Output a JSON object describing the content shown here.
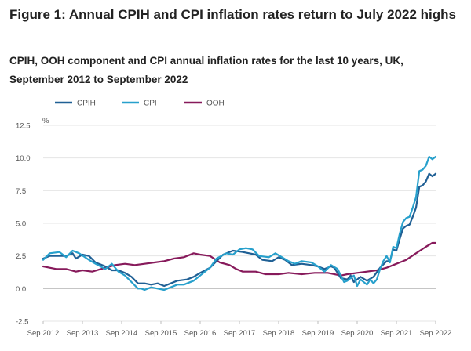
{
  "page": {
    "title": "Figure 1: Annual CPIH and CPI inflation rates return to July 2022 highs",
    "subtitle": "CPIH, OOH component and CPI annual inflation rates for the last 10 years, UK, September 2012 to September 2022"
  },
  "chart_data": {
    "type": "line",
    "title": "Figure 1: Annual CPIH and CPI inflation rates return to July 2022 highs",
    "subtitle": "CPIH, OOH component and CPI annual inflation rates for the last 10 years, UK, September 2012 to September 2022",
    "ylabel": "%",
    "xlabel": "",
    "ylim": [
      -2.5,
      12.5
    ],
    "yticks": [
      -2.5,
      0.0,
      2.5,
      5.0,
      7.5,
      10.0,
      12.5
    ],
    "ytick_labels": [
      "-2.5",
      "0.0",
      "2.5",
      "5.0",
      "7.5",
      "10.0",
      "12.5"
    ],
    "xlim": [
      2012.667,
      2022.667
    ],
    "xtick_labels": [
      "Sep 2012",
      "Sep 2013",
      "Sep 2014",
      "Sep 2015",
      "Sep 2016",
      "Sep 2017",
      "Sep 2018",
      "Sep 2019",
      "Sep 2020",
      "Sep 2021",
      "Sep 2022"
    ],
    "grid": true,
    "legend_position": "top-left",
    "series": [
      {
        "name": "CPIH",
        "color": "#206095",
        "points": [
          [
            2012.667,
            2.3
          ],
          [
            2012.833,
            2.5
          ],
          [
            2013.083,
            2.5
          ],
          [
            2013.25,
            2.5
          ],
          [
            2013.417,
            2.7
          ],
          [
            2013.5,
            2.3
          ],
          [
            2013.667,
            2.6
          ],
          [
            2013.833,
            2.5
          ],
          [
            2014.0,
            2.0
          ],
          [
            2014.25,
            1.7
          ],
          [
            2014.417,
            1.4
          ],
          [
            2014.583,
            1.4
          ],
          [
            2014.75,
            1.2
          ],
          [
            2014.917,
            0.9
          ],
          [
            2015.083,
            0.4
          ],
          [
            2015.25,
            0.4
          ],
          [
            2015.417,
            0.3
          ],
          [
            2015.583,
            0.4
          ],
          [
            2015.75,
            0.2
          ],
          [
            2015.917,
            0.4
          ],
          [
            2016.083,
            0.6
          ],
          [
            2016.333,
            0.7
          ],
          [
            2016.5,
            0.9
          ],
          [
            2016.667,
            1.2
          ],
          [
            2016.917,
            1.6
          ],
          [
            2017.083,
            2.1
          ],
          [
            2017.25,
            2.6
          ],
          [
            2017.5,
            2.9
          ],
          [
            2017.75,
            2.8
          ],
          [
            2017.917,
            2.7
          ],
          [
            2018.083,
            2.6
          ],
          [
            2018.25,
            2.2
          ],
          [
            2018.5,
            2.1
          ],
          [
            2018.667,
            2.4
          ],
          [
            2018.833,
            2.2
          ],
          [
            2019.0,
            1.8
          ],
          [
            2019.25,
            1.9
          ],
          [
            2019.5,
            1.8
          ],
          [
            2019.667,
            1.7
          ],
          [
            2019.833,
            1.5
          ],
          [
            2020.0,
            1.7
          ],
          [
            2020.083,
            1.6
          ],
          [
            2020.25,
            0.8
          ],
          [
            2020.417,
            0.7
          ],
          [
            2020.5,
            1.0
          ],
          [
            2020.583,
            0.5
          ],
          [
            2020.75,
            0.9
          ],
          [
            2020.917,
            0.6
          ],
          [
            2021.083,
            0.9
          ],
          [
            2021.25,
            1.6
          ],
          [
            2021.417,
            2.1
          ],
          [
            2021.5,
            2.1
          ],
          [
            2021.583,
            3.0
          ],
          [
            2021.667,
            2.9
          ],
          [
            2021.75,
            3.8
          ],
          [
            2021.833,
            4.6
          ],
          [
            2021.917,
            4.8
          ],
          [
            2022.0,
            4.9
          ],
          [
            2022.083,
            5.5
          ],
          [
            2022.167,
            6.2
          ],
          [
            2022.25,
            7.8
          ],
          [
            2022.333,
            7.9
          ],
          [
            2022.417,
            8.2
          ],
          [
            2022.5,
            8.8
          ],
          [
            2022.583,
            8.6
          ],
          [
            2022.667,
            8.8
          ]
        ]
      },
      {
        "name": "CPI",
        "color": "#27a0cc",
        "points": [
          [
            2012.667,
            2.2
          ],
          [
            2012.833,
            2.7
          ],
          [
            2013.083,
            2.8
          ],
          [
            2013.25,
            2.4
          ],
          [
            2013.417,
            2.9
          ],
          [
            2013.583,
            2.7
          ],
          [
            2013.833,
            2.2
          ],
          [
            2014.0,
            1.9
          ],
          [
            2014.25,
            1.5
          ],
          [
            2014.417,
            1.9
          ],
          [
            2014.583,
            1.3
          ],
          [
            2014.75,
            1.0
          ],
          [
            2014.917,
            0.5
          ],
          [
            2015.083,
            0.0
          ],
          [
            2015.167,
            0.0
          ],
          [
            2015.25,
            -0.1
          ],
          [
            2015.417,
            0.1
          ],
          [
            2015.583,
            0.0
          ],
          [
            2015.75,
            -0.1
          ],
          [
            2015.917,
            0.1
          ],
          [
            2016.083,
            0.3
          ],
          [
            2016.25,
            0.3
          ],
          [
            2016.5,
            0.6
          ],
          [
            2016.667,
            1.0
          ],
          [
            2016.917,
            1.6
          ],
          [
            2017.083,
            2.3
          ],
          [
            2017.333,
            2.7
          ],
          [
            2017.5,
            2.6
          ],
          [
            2017.667,
            3.0
          ],
          [
            2017.833,
            3.1
          ],
          [
            2018.0,
            3.0
          ],
          [
            2018.167,
            2.5
          ],
          [
            2018.417,
            2.4
          ],
          [
            2018.583,
            2.7
          ],
          [
            2018.75,
            2.4
          ],
          [
            2018.917,
            2.1
          ],
          [
            2019.083,
            1.9
          ],
          [
            2019.25,
            2.1
          ],
          [
            2019.5,
            2.0
          ],
          [
            2019.667,
            1.7
          ],
          [
            2019.833,
            1.3
          ],
          [
            2020.0,
            1.8
          ],
          [
            2020.167,
            1.5
          ],
          [
            2020.333,
            0.5
          ],
          [
            2020.417,
            0.6
          ],
          [
            2020.583,
            1.0
          ],
          [
            2020.667,
            0.2
          ],
          [
            2020.75,
            0.7
          ],
          [
            2020.917,
            0.3
          ],
          [
            2021.0,
            0.7
          ],
          [
            2021.083,
            0.4
          ],
          [
            2021.167,
            0.7
          ],
          [
            2021.25,
            1.5
          ],
          [
            2021.333,
            2.1
          ],
          [
            2021.417,
            2.5
          ],
          [
            2021.5,
            2.0
          ],
          [
            2021.583,
            3.2
          ],
          [
            2021.667,
            3.1
          ],
          [
            2021.75,
            4.2
          ],
          [
            2021.833,
            5.1
          ],
          [
            2021.917,
            5.4
          ],
          [
            2022.0,
            5.5
          ],
          [
            2022.083,
            6.2
          ],
          [
            2022.167,
            7.0
          ],
          [
            2022.25,
            9.0
          ],
          [
            2022.333,
            9.1
          ],
          [
            2022.417,
            9.4
          ],
          [
            2022.5,
            10.1
          ],
          [
            2022.583,
            9.9
          ],
          [
            2022.667,
            10.1
          ]
        ]
      },
      {
        "name": "OOH",
        "color": "#871a5b",
        "points": [
          [
            2012.667,
            1.7
          ],
          [
            2012.833,
            1.6
          ],
          [
            2013.0,
            1.5
          ],
          [
            2013.25,
            1.5
          ],
          [
            2013.5,
            1.3
          ],
          [
            2013.667,
            1.4
          ],
          [
            2013.917,
            1.3
          ],
          [
            2014.25,
            1.6
          ],
          [
            2014.5,
            1.8
          ],
          [
            2014.75,
            1.9
          ],
          [
            2015.0,
            1.8
          ],
          [
            2015.25,
            1.9
          ],
          [
            2015.5,
            2.0
          ],
          [
            2015.75,
            2.1
          ],
          [
            2016.0,
            2.3
          ],
          [
            2016.25,
            2.4
          ],
          [
            2016.5,
            2.7
          ],
          [
            2016.667,
            2.6
          ],
          [
            2016.917,
            2.5
          ],
          [
            2017.167,
            2.0
          ],
          [
            2017.417,
            1.8
          ],
          [
            2017.583,
            1.5
          ],
          [
            2017.75,
            1.3
          ],
          [
            2018.083,
            1.3
          ],
          [
            2018.333,
            1.1
          ],
          [
            2018.667,
            1.1
          ],
          [
            2018.917,
            1.2
          ],
          [
            2019.25,
            1.1
          ],
          [
            2019.583,
            1.2
          ],
          [
            2019.917,
            1.2
          ],
          [
            2020.25,
            1.0
          ],
          [
            2020.417,
            1.1
          ],
          [
            2020.667,
            1.2
          ],
          [
            2020.917,
            1.3
          ],
          [
            2021.167,
            1.4
          ],
          [
            2021.417,
            1.6
          ],
          [
            2021.667,
            1.9
          ],
          [
            2021.917,
            2.2
          ],
          [
            2022.167,
            2.7
          ],
          [
            2022.417,
            3.2
          ],
          [
            2022.583,
            3.5
          ],
          [
            2022.667,
            3.5
          ]
        ]
      }
    ]
  }
}
